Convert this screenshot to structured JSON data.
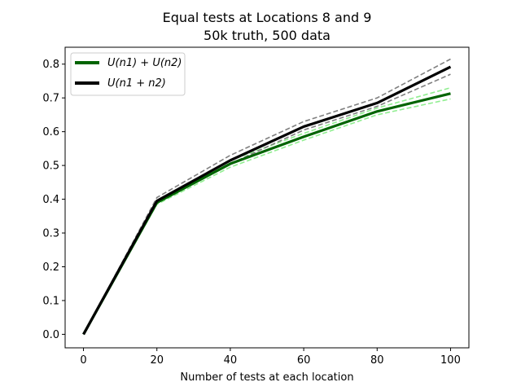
{
  "chart_data": {
    "type": "line",
    "title": "Equal tests at Locations 8 and 9",
    "subtitle": "50k truth, 500 data",
    "xlabel": "Number of tests at each location",
    "ylabel": "",
    "xlim": [
      -5,
      105
    ],
    "ylim": [
      -0.04,
      0.85
    ],
    "x_ticks": [
      0,
      20,
      40,
      60,
      80,
      100
    ],
    "y_ticks": [
      0.0,
      0.1,
      0.2,
      0.3,
      0.4,
      0.5,
      0.6,
      0.7,
      0.8
    ],
    "x_tick_labels": [
      "0",
      "20",
      "40",
      "60",
      "80",
      "100"
    ],
    "y_tick_labels": [
      "0.0",
      "0.1",
      "0.2",
      "0.3",
      "0.4",
      "0.5",
      "0.6",
      "0.7",
      "0.8"
    ],
    "grid": false,
    "legend_position": "upper-left",
    "x": [
      0,
      20,
      40,
      60,
      80,
      100
    ],
    "series": [
      {
        "name": "U(n1) + U(n2)",
        "color": "#006400",
        "style": "solid",
        "width": "thick",
        "in_legend": true,
        "values": [
          0.0,
          0.39,
          0.505,
          0.585,
          0.66,
          0.713
        ]
      },
      {
        "name": "U(n1 + n2)",
        "color": "#000000",
        "style": "solid",
        "width": "thick",
        "in_legend": true,
        "values": [
          0.0,
          0.395,
          0.515,
          0.615,
          0.685,
          0.792
        ]
      },
      {
        "name": "",
        "color": "#90ee90",
        "style": "dashed",
        "width": "thin",
        "in_legend": false,
        "values": [
          0.0,
          0.385,
          0.495,
          0.575,
          0.65,
          0.697
        ]
      },
      {
        "name": "",
        "color": "#90ee90",
        "style": "dashed",
        "width": "thin",
        "in_legend": false,
        "values": [
          0.0,
          0.395,
          0.515,
          0.595,
          0.67,
          0.73
        ]
      },
      {
        "name": "",
        "color": "#808080",
        "style": "dashed",
        "width": "thin",
        "in_legend": false,
        "values": [
          0.0,
          0.39,
          0.505,
          0.605,
          0.675,
          0.77
        ]
      },
      {
        "name": "",
        "color": "#808080",
        "style": "dashed",
        "width": "thin",
        "in_legend": false,
        "values": [
          0.0,
          0.405,
          0.53,
          0.63,
          0.7,
          0.815
        ]
      }
    ]
  }
}
